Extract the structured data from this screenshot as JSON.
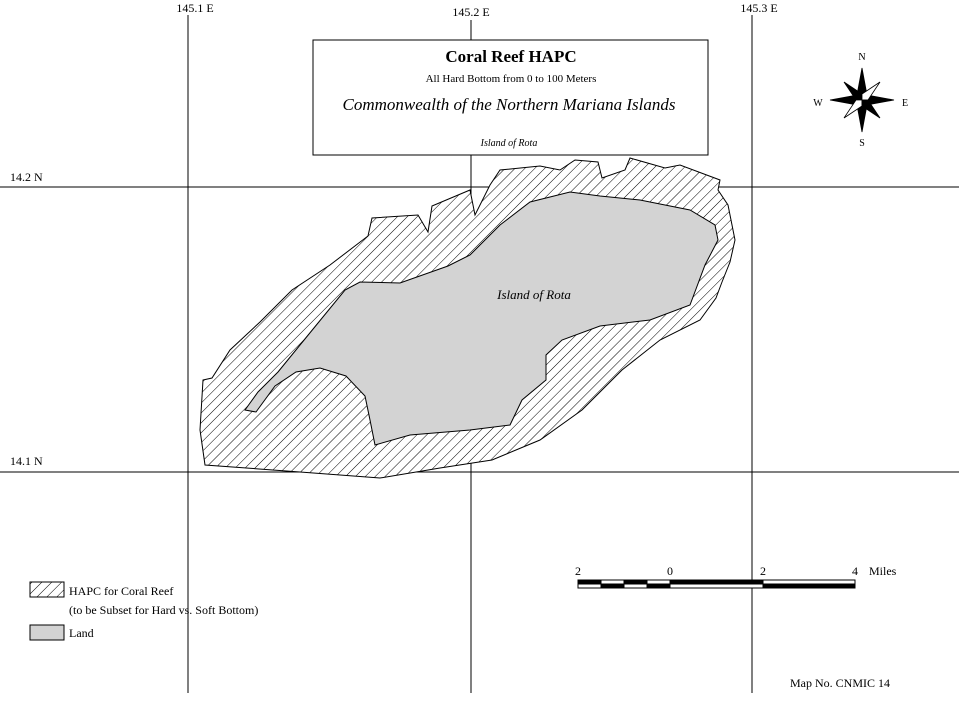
{
  "grid": {
    "longitudes": [
      "145.1 E",
      "145.2 E",
      "145.3 E"
    ],
    "latitudes": [
      "14.2 N",
      "14.1 N"
    ]
  },
  "header": {
    "title": "Coral Reef HAPC",
    "subtitle": "All Hard Bottom from 0 to 100 Meters",
    "region": "Commonwealth of the Northern Mariana Islands",
    "island": "Island of Rota"
  },
  "map_label": "Island of Rota",
  "compass": {
    "n": "N",
    "s": "S",
    "e": "E",
    "w": "W"
  },
  "legend": [
    {
      "label": "HAPC for Coral Reef",
      "note": "(to be Subset for Hard vs. Soft Bottom)"
    },
    {
      "label": "Land"
    }
  ],
  "scale_bar": {
    "labels": [
      "2",
      "0",
      "2",
      "4"
    ],
    "unit": "Miles"
  },
  "map_number": "Map No. CNMIC 14"
}
